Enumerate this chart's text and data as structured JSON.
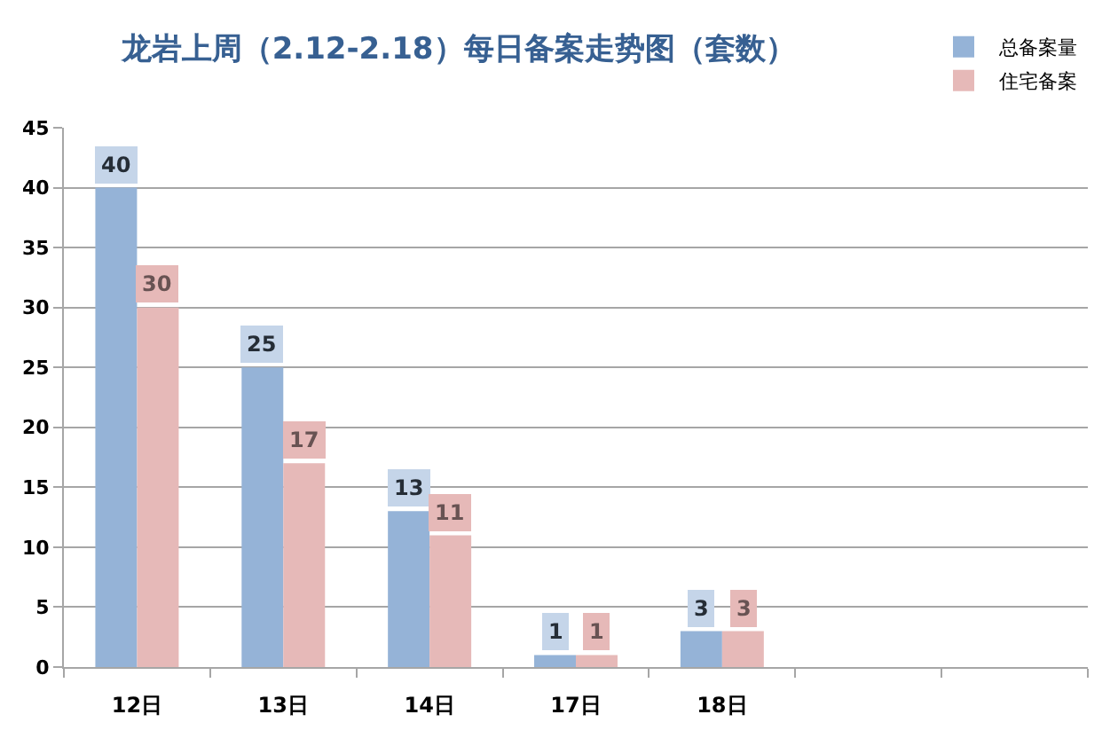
{
  "chart_data": {
    "type": "bar",
    "title": "龙岩上周（2.12-2.18）每日备案走势图（套数）",
    "categories": [
      "12日",
      "13日",
      "14日",
      "17日",
      "18日",
      null,
      null
    ],
    "series": [
      {
        "name": "总备案量",
        "color": "#95b3d7",
        "values": [
          40,
          25,
          13,
          1,
          3,
          null,
          null
        ]
      },
      {
        "name": "住宅备案",
        "color": "#e6b9b8",
        "values": [
          30,
          17,
          11,
          1,
          3,
          null,
          null
        ]
      }
    ],
    "ylim": [
      0,
      45
    ],
    "yticks": [
      0,
      5,
      10,
      15,
      20,
      25,
      30,
      35,
      40,
      45
    ],
    "grid": "y",
    "legend": "top right",
    "data_labels": true
  }
}
